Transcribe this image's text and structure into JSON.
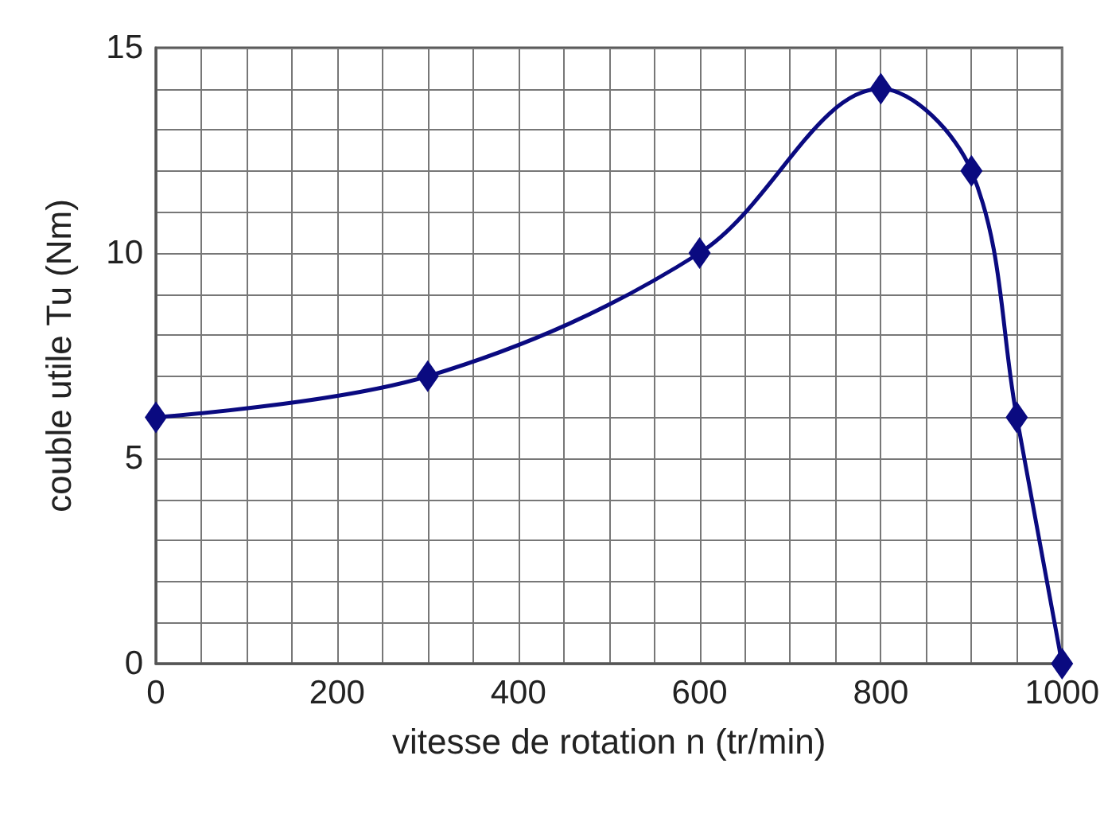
{
  "chart_data": {
    "type": "line",
    "xlabel": "vitesse de rotation n (tr/min)",
    "ylabel": "couble utile Tu (Nm)",
    "x": [
      0,
      300,
      600,
      800,
      900,
      950,
      1000
    ],
    "series": [
      {
        "color": "#0a0a80",
        "values": [
          6,
          7,
          10,
          14,
          12,
          6,
          0
        ]
      }
    ],
    "xlim": [
      0,
      1000
    ],
    "xticks": [
      0,
      {
        "value": 50,
        "label": null
      },
      200,
      {
        "value": 150,
        "label": null
      },
      {
        "value": 100,
        "label": null
      },
      {
        "value": 250,
        "label": null
      },
      {
        "value": 300,
        "label": null
      },
      {
        "value": 350,
        "label": null
      },
      400,
      {
        "value": 450,
        "label": null
      },
      {
        "value": 500,
        "label": null
      },
      {
        "value": 550,
        "label": null
      },
      600,
      {
        "value": 650,
        "label": null
      },
      {
        "value": 700,
        "label": null
      },
      {
        "value": 750,
        "label": null
      },
      800,
      {
        "value": 850,
        "label": null
      },
      {
        "value": 900,
        "label": null
      },
      {
        "value": 950,
        "label": null
      },
      1000
    ],
    "ylim": [
      0,
      15
    ],
    "yticks": [
      0,
      {
        "value": 1,
        "label": null
      },
      {
        "value": 2,
        "label": null
      },
      {
        "value": 3,
        "label": null
      },
      {
        "value": 4,
        "label": null
      },
      5,
      {
        "value": 6,
        "label": null
      },
      {
        "value": 7,
        "label": null
      },
      {
        "value": 8,
        "label": null
      },
      {
        "value": 9,
        "label": null
      },
      10,
      {
        "value": 11,
        "label": null
      },
      {
        "value": 12,
        "label": null
      },
      {
        "value": 13,
        "label": null
      },
      {
        "value": 14,
        "label": null
      },
      15
    ],
    "grid": true,
    "marker": "diamond",
    "line_style": "solid"
  }
}
